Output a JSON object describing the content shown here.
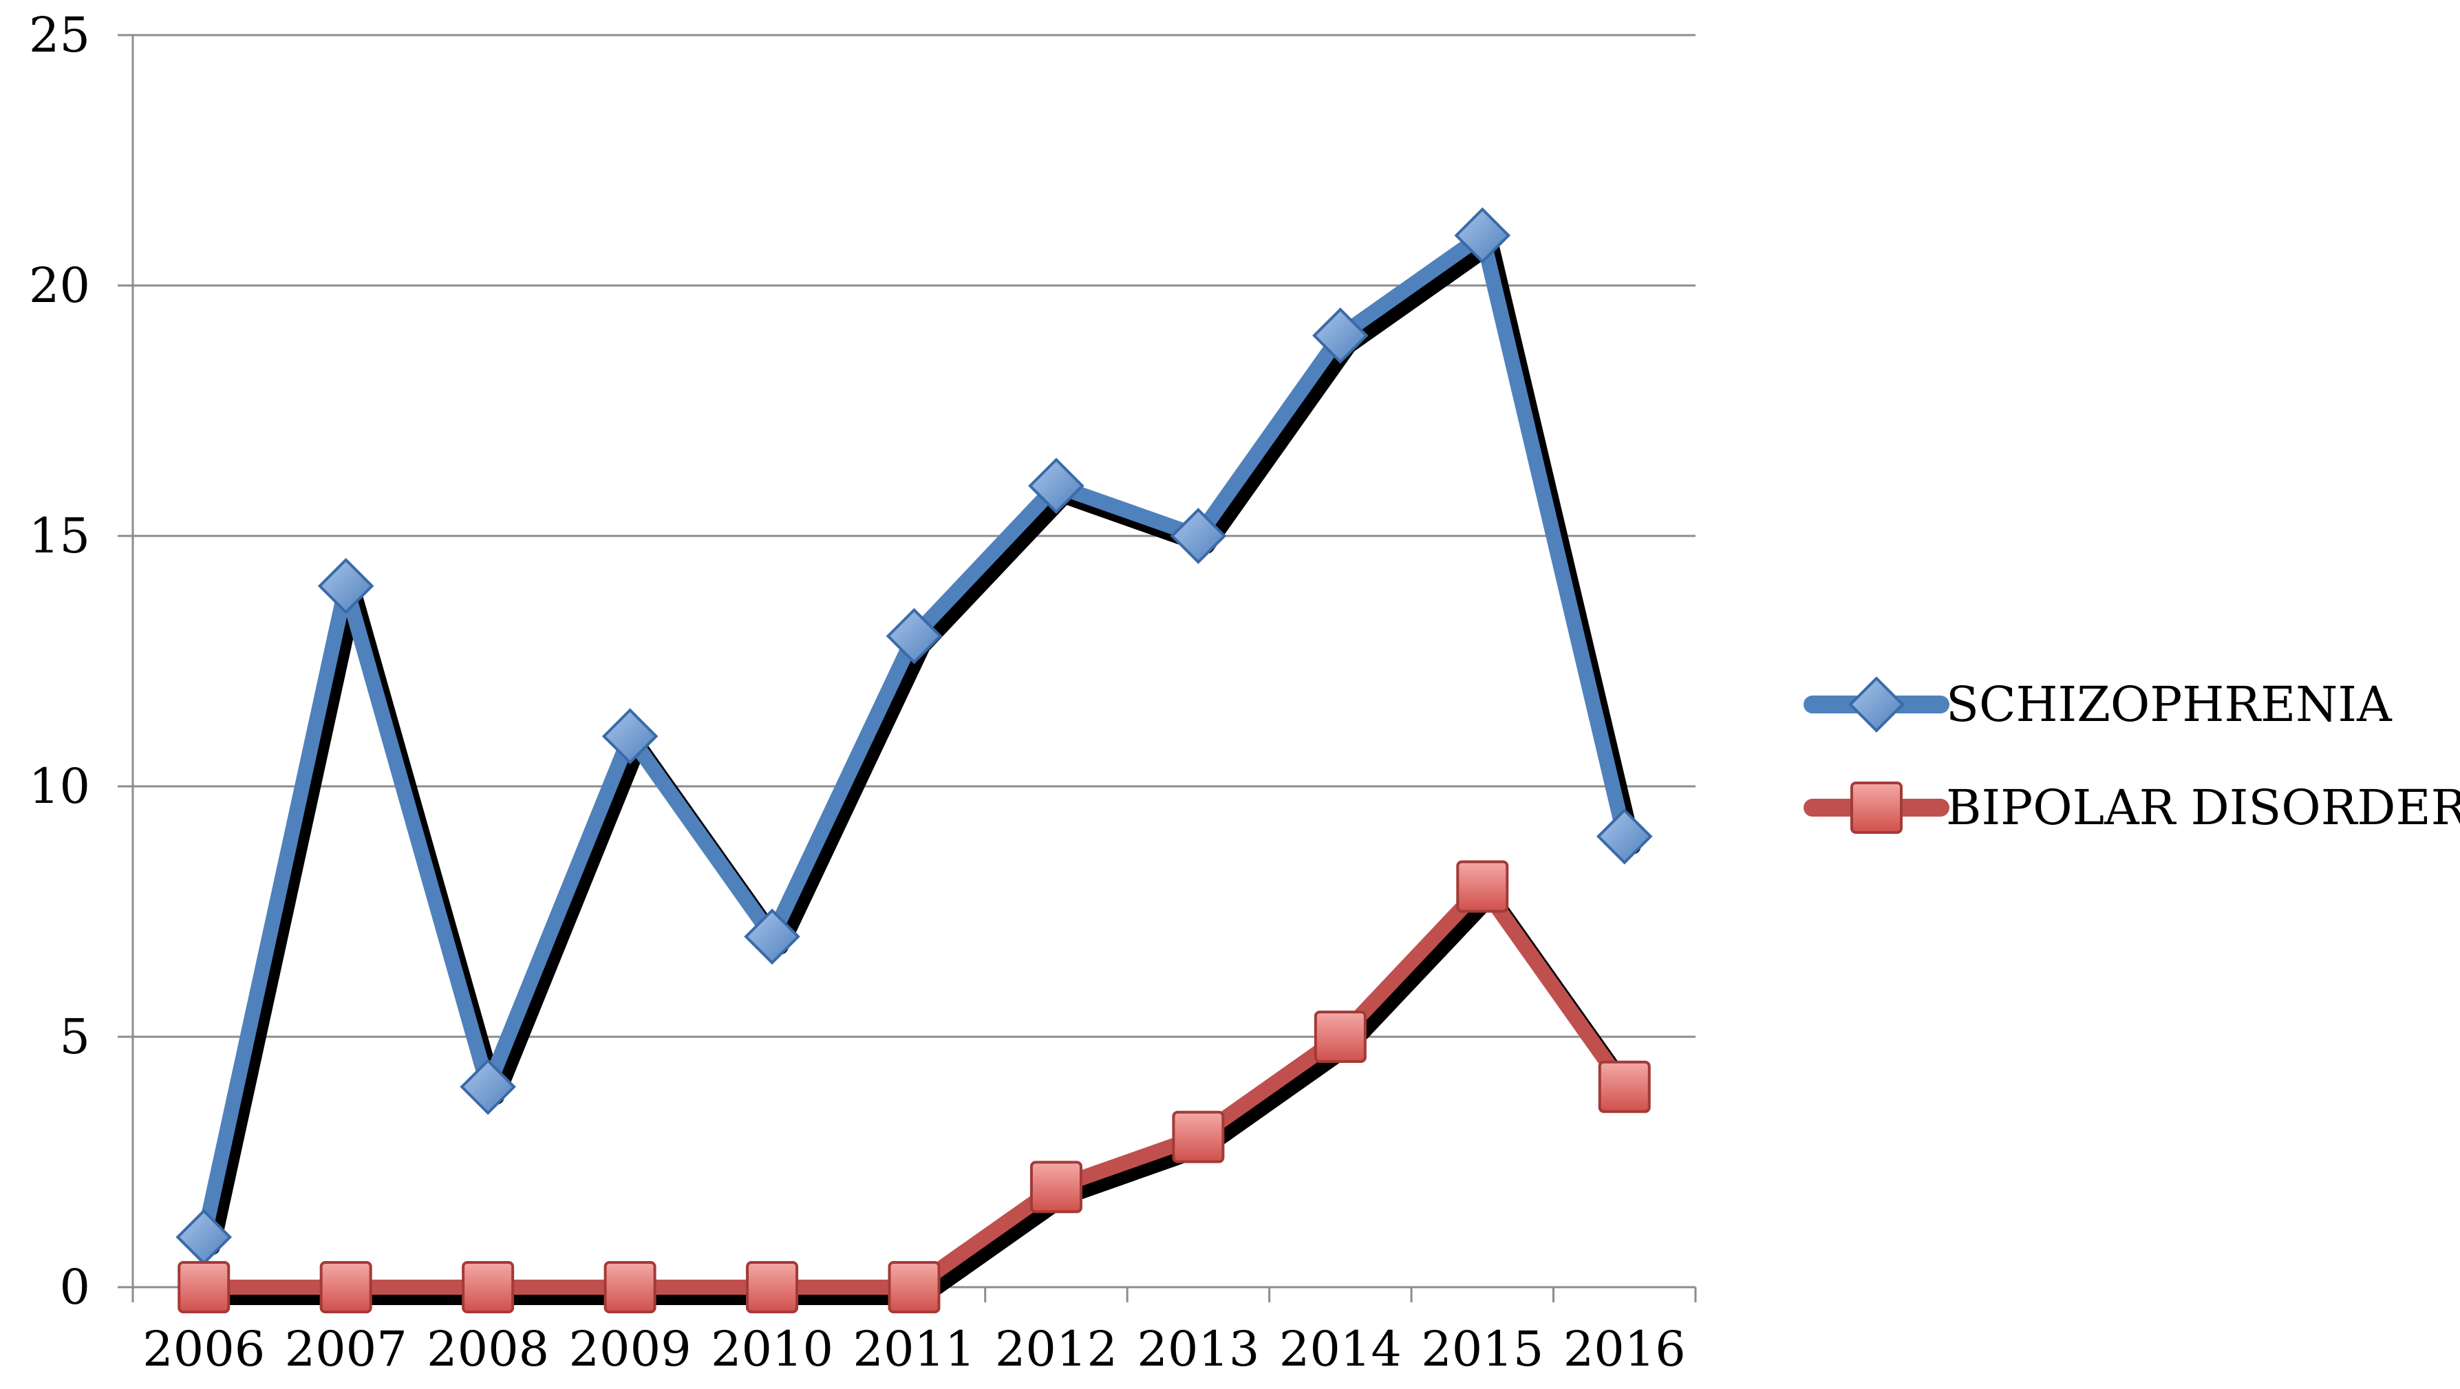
{
  "chart_data": {
    "type": "line",
    "title": "",
    "xlabel": "",
    "ylabel": "",
    "categories": [
      "2006",
      "2007",
      "2008",
      "2009",
      "2010",
      "2011",
      "2012",
      "2013",
      "2014",
      "2015",
      "2016"
    ],
    "ylim": [
      0,
      25
    ],
    "yticks": [
      "0",
      "5",
      "10",
      "15",
      "20",
      "25"
    ],
    "grid": "horizontal",
    "legend_position": "right",
    "series": [
      {
        "name": "SCHIZOPHRENIA",
        "values": [
          1,
          14,
          4,
          11,
          7,
          13,
          16,
          15,
          19,
          21,
          9
        ],
        "color": "#4F81BD",
        "marker": "diamond"
      },
      {
        "name": "BIPOLAR DISORDER",
        "values": [
          0,
          0,
          0,
          0,
          0,
          0,
          2,
          3,
          5,
          8,
          4
        ],
        "color": "#C0504D",
        "marker": "square"
      }
    ]
  }
}
